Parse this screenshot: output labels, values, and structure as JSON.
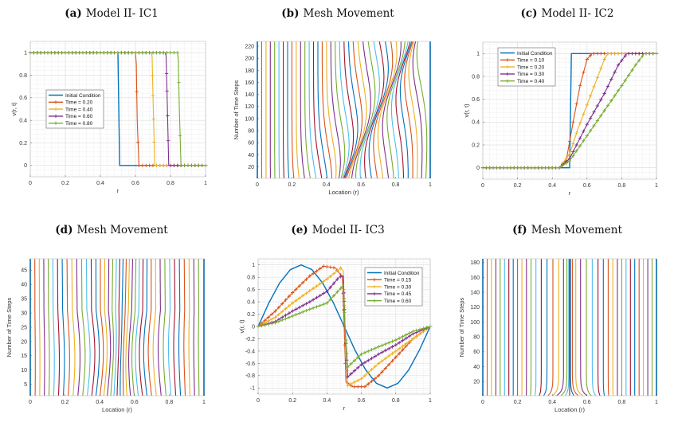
{
  "colors": [
    "#0072BD",
    "#D95319",
    "#EDB120",
    "#7E2F8E",
    "#77AC30",
    "#4DBEEE",
    "#A2142F"
  ],
  "chart_data": [
    {
      "id": "a",
      "type": "line",
      "title": {
        "label": "(a)",
        "text": "Model II- IC1"
      },
      "xlabel": "r",
      "ylabel": "v(r, t)",
      "xlim": [
        0,
        1
      ],
      "ylim": [
        -0.1,
        1.1
      ],
      "xticks": [
        0,
        0.2,
        0.4,
        0.6,
        0.8,
        1
      ],
      "yticks": [
        0,
        0.2,
        0.4,
        0.6,
        0.8,
        1
      ],
      "grid": true,
      "legend_position": "center-left",
      "series": [
        {
          "name": "Initial Condition",
          "marker": false,
          "x": [
            0,
            0.5,
            0.51,
            1
          ],
          "y": [
            1,
            1,
            0,
            0
          ]
        },
        {
          "name": "Time = 0.20",
          "marker": true,
          "x": [
            0,
            0.6,
            0.605,
            0.61,
            0.62,
            1
          ],
          "y": [
            1,
            1,
            0.9,
            0.41,
            0,
            0
          ]
        },
        {
          "name": "Time = 0.40",
          "marker": true,
          "x": [
            0,
            0.69,
            0.695,
            0.7,
            0.71,
            1
          ],
          "y": [
            1,
            1,
            0.97,
            0.62,
            0,
            0
          ]
        },
        {
          "name": "Time = 0.60",
          "marker": true,
          "x": [
            0,
            0.77,
            0.775,
            0.78,
            0.79,
            1
          ],
          "y": [
            1,
            1,
            0.97,
            0.66,
            0,
            0
          ]
        },
        {
          "name": "Time = 0.80",
          "marker": true,
          "x": [
            0,
            0.84,
            0.845,
            0.85,
            0.86,
            1
          ],
          "y": [
            1,
            1,
            0.94,
            0.53,
            0,
            0
          ]
        }
      ]
    },
    {
      "id": "b",
      "type": "line",
      "title": {
        "label": "(b)",
        "text": "Mesh Movement"
      },
      "xlabel": "Location (r)",
      "ylabel": "Number of Time Steps",
      "xlim": [
        0,
        1
      ],
      "ylim": [
        1,
        228
      ],
      "xticks": [
        0,
        0.2,
        0.4,
        0.6,
        0.8,
        1
      ],
      "yticks": [
        20,
        40,
        60,
        80,
        100,
        120,
        140,
        160,
        180,
        200,
        220
      ],
      "grid": false,
      "mesh": {
        "lines": 41,
        "cluster_start": 0.5,
        "cluster_end": 0.9,
        "mode": "moving"
      }
    },
    {
      "id": "c",
      "type": "line",
      "title": {
        "label": "(c)",
        "text": "Model II- IC2"
      },
      "xlabel": "r",
      "ylabel": "v(r, t)",
      "xlim": [
        0,
        1
      ],
      "ylim": [
        -0.1,
        1.1
      ],
      "xticks": [
        0,
        0.2,
        0.4,
        0.6,
        0.8,
        1
      ],
      "yticks": [
        0,
        0.2,
        0.4,
        0.6,
        0.8,
        1
      ],
      "grid": true,
      "legend_position": "top-left",
      "series": [
        {
          "name": "Initial Condition",
          "marker": false,
          "x": [
            0,
            0.5,
            0.51,
            1
          ],
          "y": [
            0,
            0,
            1,
            1
          ]
        },
        {
          "name": "Time = 0.10",
          "marker": true,
          "x": [
            0,
            0.44,
            0.48,
            0.52,
            0.56,
            0.6,
            0.63,
            1
          ],
          "y": [
            0,
            0,
            0.06,
            0.4,
            0.72,
            0.95,
            1,
            1
          ]
        },
        {
          "name": "Time = 0.20",
          "marker": true,
          "x": [
            0,
            0.44,
            0.5,
            0.55,
            0.6,
            0.65,
            0.7,
            0.72,
            1
          ],
          "y": [
            0,
            0,
            0.12,
            0.35,
            0.55,
            0.75,
            0.95,
            1,
            1
          ]
        },
        {
          "name": "Time = 0.30",
          "marker": true,
          "x": [
            0,
            0.44,
            0.5,
            0.6,
            0.7,
            0.78,
            0.83,
            1
          ],
          "y": [
            0,
            0,
            0.08,
            0.38,
            0.65,
            0.9,
            1,
            1
          ]
        },
        {
          "name": "Time = 0.40",
          "marker": true,
          "x": [
            0,
            0.44,
            0.5,
            0.6,
            0.7,
            0.8,
            0.88,
            0.93,
            1
          ],
          "y": [
            0,
            0,
            0.06,
            0.28,
            0.5,
            0.72,
            0.9,
            1,
            1
          ]
        }
      ]
    },
    {
      "id": "d",
      "type": "line",
      "title": {
        "label": "(d)",
        "text": "Mesh Movement"
      },
      "xlabel": "Location (r)",
      "ylabel": "Number of Time Steps",
      "xlim": [
        0,
        1
      ],
      "ylim": [
        1,
        49
      ],
      "xticks": [
        0,
        0.2,
        0.4,
        0.6,
        0.8,
        1
      ],
      "yticks": [
        5,
        10,
        15,
        20,
        25,
        30,
        35,
        40,
        45
      ],
      "grid": false,
      "mesh": {
        "lines": 41,
        "cluster_start": 0.5,
        "cluster_end": 0.56,
        "mode": "wave"
      }
    },
    {
      "id": "e",
      "type": "line",
      "title": {
        "label": "(e)",
        "text": "Model II- IC3"
      },
      "xlabel": "r",
      "ylabel": "v(r, t)",
      "xlim": [
        0,
        1
      ],
      "ylim": [
        -1.1,
        1.1
      ],
      "xticks": [
        0,
        0.2,
        0.4,
        0.6,
        0.8,
        1
      ],
      "yticks": [
        -1,
        -0.8,
        -0.6,
        -0.4,
        -0.2,
        0,
        0.2,
        0.4,
        0.6,
        0.8,
        1
      ],
      "grid": true,
      "legend_position": "top-right",
      "series": [
        {
          "name": "Initial Condition",
          "marker": false,
          "x": [
            0,
            0.0625,
            0.125,
            0.1875,
            0.25,
            0.3125,
            0.375,
            0.4375,
            0.5,
            0.5625,
            0.625,
            0.6875,
            0.75,
            0.8125,
            0.875,
            0.9375,
            1
          ],
          "y": [
            0,
            0.383,
            0.707,
            0.924,
            1,
            0.924,
            0.707,
            0.383,
            0,
            -0.383,
            -0.707,
            -0.924,
            -1,
            -0.924,
            -0.707,
            -0.383,
            0
          ]
        },
        {
          "name": "Time = 0.15",
          "marker": true,
          "x": [
            0,
            0.1,
            0.2,
            0.3,
            0.38,
            0.45,
            0.49,
            0.5,
            0.51,
            0.55,
            0.62,
            0.7,
            0.8,
            0.9,
            1
          ],
          "y": [
            0,
            0.25,
            0.55,
            0.82,
            0.98,
            0.95,
            0.8,
            0,
            -0.9,
            -0.98,
            -0.98,
            -0.8,
            -0.5,
            -0.2,
            0
          ]
        },
        {
          "name": "Time = 0.30",
          "marker": true,
          "x": [
            0,
            0.1,
            0.2,
            0.3,
            0.4,
            0.48,
            0.495,
            0.505,
            0.52,
            0.6,
            0.7,
            0.8,
            0.9,
            1
          ],
          "y": [
            0,
            0.15,
            0.38,
            0.58,
            0.77,
            0.95,
            0.9,
            0,
            -0.96,
            -0.85,
            -0.6,
            -0.4,
            -0.2,
            0
          ]
        },
        {
          "name": "Time = 0.45",
          "marker": true,
          "x": [
            0,
            0.1,
            0.2,
            0.3,
            0.4,
            0.47,
            0.495,
            0.505,
            0.52,
            0.6,
            0.7,
            0.8,
            0.9,
            1
          ],
          "y": [
            0,
            0.08,
            0.25,
            0.4,
            0.57,
            0.8,
            0.82,
            0,
            -0.82,
            -0.62,
            -0.45,
            -0.3,
            -0.12,
            0
          ]
        },
        {
          "name": "Time = 0.60",
          "marker": true,
          "x": [
            0,
            0.1,
            0.2,
            0.3,
            0.4,
            0.48,
            0.495,
            0.505,
            0.52,
            0.6,
            0.7,
            0.8,
            0.9,
            1
          ],
          "y": [
            0,
            0.06,
            0.17,
            0.28,
            0.38,
            0.62,
            0.68,
            0,
            -0.66,
            -0.45,
            -0.33,
            -0.22,
            -0.08,
            0
          ]
        }
      ]
    },
    {
      "id": "f",
      "type": "line",
      "title": {
        "label": "(f)",
        "text": "Mesh Movement"
      },
      "xlabel": "Location (r)",
      "ylabel": "Number of Time Steps",
      "xlim": [
        0,
        1
      ],
      "ylim": [
        1,
        185
      ],
      "xticks": [
        0,
        0.2,
        0.4,
        0.6,
        0.8,
        1
      ],
      "yticks": [
        20,
        40,
        60,
        80,
        100,
        120,
        140,
        160,
        180
      ],
      "grid": false,
      "mesh": {
        "lines": 41,
        "cluster_start": 0.5,
        "cluster_end": 0.5,
        "mode": "converge"
      }
    }
  ]
}
